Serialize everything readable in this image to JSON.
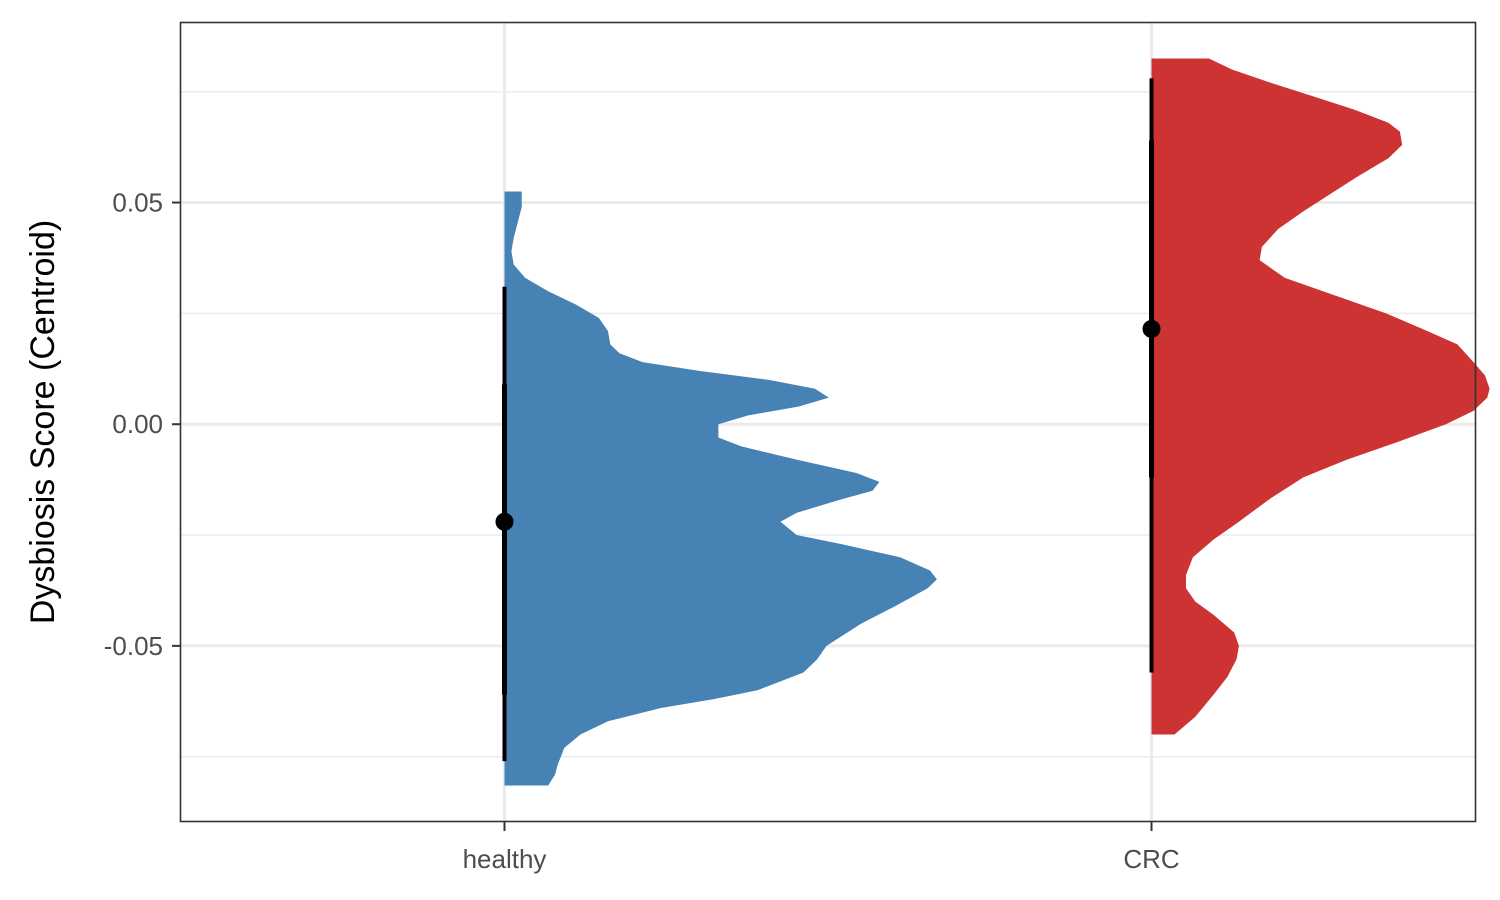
{
  "chart_data": {
    "type": "violin",
    "title": "",
    "xlabel": "",
    "ylabel": "Dysbiosis Score (Centroid)",
    "categories": [
      "healthy",
      "CRC"
    ],
    "ylim": [
      -0.0895,
      0.0905
    ],
    "yticks": [
      {
        "value": -0.05,
        "label": "-0.05"
      },
      {
        "value": 0.0,
        "label": "0.00"
      },
      {
        "value": 0.05,
        "label": "0.05"
      }
    ],
    "grid": true,
    "legend": "none",
    "series": [
      {
        "category": "healthy",
        "color": "#4682B4",
        "y_range": [
          -0.0815,
          0.0525
        ],
        "density": [
          [
            -0.0815,
            0.19
          ],
          [
            -0.079,
            0.22
          ],
          [
            -0.077,
            0.23
          ],
          [
            -0.073,
            0.26
          ],
          [
            -0.07,
            0.33
          ],
          [
            -0.067,
            0.45
          ],
          [
            -0.064,
            0.68
          ],
          [
            -0.062,
            0.91
          ],
          [
            -0.06,
            1.1
          ],
          [
            -0.056,
            1.3
          ],
          [
            -0.053,
            1.36
          ],
          [
            -0.05,
            1.4
          ],
          [
            -0.045,
            1.55
          ],
          [
            -0.041,
            1.7
          ],
          [
            -0.037,
            1.84
          ],
          [
            -0.035,
            1.88
          ],
          [
            -0.033,
            1.85
          ],
          [
            -0.03,
            1.72
          ],
          [
            -0.027,
            1.46
          ],
          [
            -0.025,
            1.27
          ],
          [
            -0.022,
            1.2
          ],
          [
            -0.02,
            1.27
          ],
          [
            -0.017,
            1.46
          ],
          [
            -0.015,
            1.6
          ],
          [
            -0.013,
            1.63
          ],
          [
            -0.011,
            1.53
          ],
          [
            -0.008,
            1.27
          ],
          [
            -0.005,
            1.03
          ],
          [
            -0.003,
            0.93
          ],
          [
            0.0,
            0.93
          ],
          [
            0.002,
            1.06
          ],
          [
            0.004,
            1.28
          ],
          [
            0.006,
            1.41
          ],
          [
            0.008,
            1.35
          ],
          [
            0.01,
            1.15
          ],
          [
            0.012,
            0.85
          ],
          [
            0.014,
            0.6
          ],
          [
            0.016,
            0.5
          ],
          [
            0.018,
            0.46
          ],
          [
            0.021,
            0.45
          ],
          [
            0.024,
            0.41
          ],
          [
            0.027,
            0.31
          ],
          [
            0.03,
            0.19
          ],
          [
            0.033,
            0.09
          ],
          [
            0.036,
            0.04
          ],
          [
            0.039,
            0.03
          ],
          [
            0.042,
            0.04
          ],
          [
            0.046,
            0.06
          ],
          [
            0.049,
            0.075
          ],
          [
            0.0525,
            0.075
          ]
        ],
        "median": -0.022,
        "interval_inner": [
          -0.061,
          0.009
        ],
        "interval_outer": [
          -0.076,
          0.031
        ]
      },
      {
        "category": "CRC",
        "color": "#CD3333",
        "y_range": [
          -0.07,
          0.0825
        ],
        "density": [
          [
            -0.07,
            0.1
          ],
          [
            -0.066,
            0.19
          ],
          [
            -0.061,
            0.27
          ],
          [
            -0.057,
            0.33
          ],
          [
            -0.053,
            0.37
          ],
          [
            -0.05,
            0.38
          ],
          [
            -0.047,
            0.36
          ],
          [
            -0.043,
            0.27
          ],
          [
            -0.04,
            0.19
          ],
          [
            -0.037,
            0.15
          ],
          [
            -0.034,
            0.15
          ],
          [
            -0.03,
            0.18
          ],
          [
            -0.026,
            0.27
          ],
          [
            -0.022,
            0.38
          ],
          [
            -0.017,
            0.51
          ],
          [
            -0.012,
            0.66
          ],
          [
            -0.008,
            0.85
          ],
          [
            -0.004,
            1.07
          ],
          [
            0.0,
            1.28
          ],
          [
            0.003,
            1.4
          ],
          [
            0.006,
            1.46
          ],
          [
            0.008,
            1.47
          ],
          [
            0.011,
            1.45
          ],
          [
            0.014,
            1.4
          ],
          [
            0.018,
            1.33
          ],
          [
            0.021,
            1.2
          ],
          [
            0.025,
            1.02
          ],
          [
            0.029,
            0.8
          ],
          [
            0.033,
            0.58
          ],
          [
            0.037,
            0.47
          ],
          [
            0.04,
            0.48
          ],
          [
            0.044,
            0.55
          ],
          [
            0.048,
            0.66
          ],
          [
            0.052,
            0.78
          ],
          [
            0.056,
            0.9
          ],
          [
            0.06,
            1.03
          ],
          [
            0.063,
            1.09
          ],
          [
            0.066,
            1.08
          ],
          [
            0.068,
            1.03
          ],
          [
            0.071,
            0.88
          ],
          [
            0.074,
            0.7
          ],
          [
            0.077,
            0.52
          ],
          [
            0.08,
            0.35
          ],
          [
            0.0825,
            0.25
          ]
        ],
        "median": 0.0215,
        "interval_inner": [
          -0.012,
          0.064
        ],
        "interval_outer": [
          -0.056,
          0.078
        ]
      }
    ]
  },
  "colors": {
    "healthy": "#4682B4",
    "CRC": "#CD3333",
    "interval": "#000000",
    "grid": "#ebebeb",
    "panel_border": "#333333"
  }
}
